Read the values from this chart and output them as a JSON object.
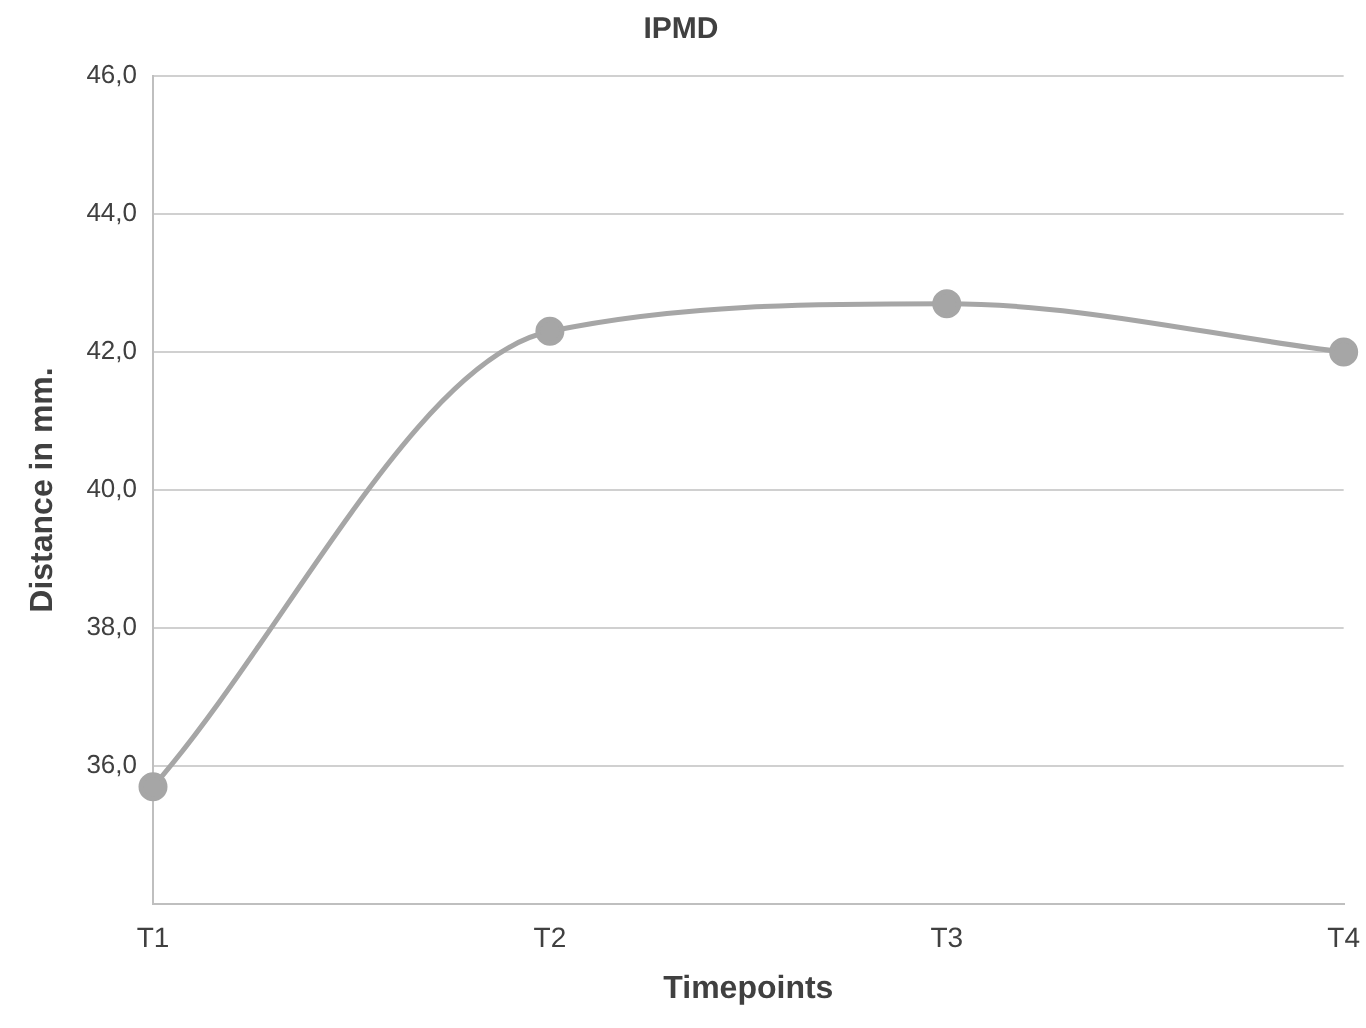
{
  "chart_data": {
    "type": "line",
    "title": "IPMD",
    "xlabel": "Timepoints",
    "ylabel": "Distance in mm.",
    "categories": [
      "T1",
      "T2",
      "T3",
      "T4"
    ],
    "series": [
      {
        "color": "#a6a6a6",
        "values": [
          35.7,
          42.3,
          42.7,
          42.0
        ]
      }
    ],
    "ylim": [
      34,
      46
    ],
    "yticks": [
      {
        "value": 34,
        "label": null
      },
      {
        "value": 36,
        "label": "36,0"
      },
      {
        "value": 38,
        "label": "38,0"
      },
      {
        "value": 40,
        "label": "40,0"
      },
      {
        "value": 42,
        "label": "42,0"
      },
      {
        "value": 44,
        "label": "44,0"
      },
      {
        "value": 46,
        "label": "46,0"
      }
    ],
    "grid": "y",
    "legend": false,
    "marker": "circle",
    "line_style": "solid"
  }
}
